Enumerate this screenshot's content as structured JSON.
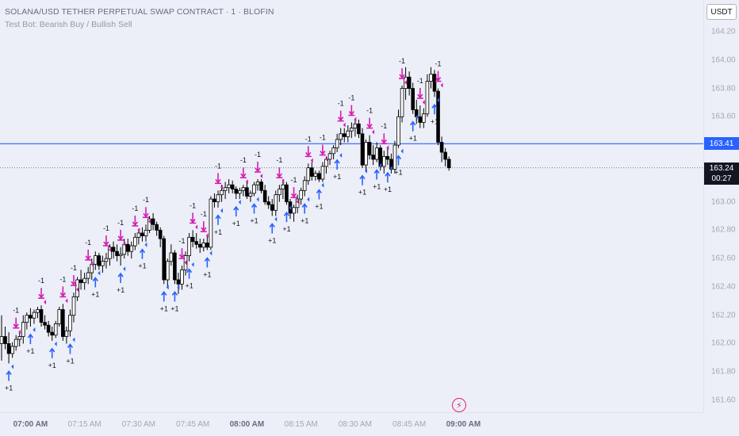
{
  "header": {
    "title": "SOLANA/USD TETHER PERPETUAL SWAP CONTRACT · 1 · BLOFIN",
    "subtitle": "Test Bot: Bearish Buy / Bullish Sell"
  },
  "currency_button": "USDT",
  "price_tags": {
    "line_price": "163.41",
    "last_price": "163.24",
    "countdown": "00:27"
  },
  "event_icon": "lightning-icon",
  "colors": {
    "background": "#eceff8",
    "candle_up_fill": "#ffffff",
    "candle_down_fill": "#000000",
    "sell_marker": "#d41cb1",
    "buy_marker": "#2962ff",
    "horizontal_line": "#2962ff",
    "event_icon": "#e0245e"
  },
  "chart_data": {
    "type": "candlestick",
    "title": "SOLANA/USD TETHER PERPETUAL SWAP CONTRACT · 1 · BLOFIN",
    "y_ticks": [
      "164.20",
      "164.00",
      "163.80",
      "163.60",
      "163.40",
      "163.20",
      "163.00",
      "162.80",
      "162.60",
      "162.40",
      "162.20",
      "162.00",
      "161.80",
      "161.60"
    ],
    "x_ticks": [
      {
        "label": "07:00 AM",
        "bold": true
      },
      {
        "label": "07:15 AM",
        "bold": false
      },
      {
        "label": "07:30 AM",
        "bold": false
      },
      {
        "label": "07:45 AM",
        "bold": false
      },
      {
        "label": "08:00 AM",
        "bold": true
      },
      {
        "label": "08:15 AM",
        "bold": false
      },
      {
        "label": "08:30 AM",
        "bold": false
      },
      {
        "label": "08:45 AM",
        "bold": false
      },
      {
        "label": "09:00 AM",
        "bold": true
      }
    ],
    "x_start_minutes": 412,
    "bar_minutes": 1,
    "ylim": [
      161.52,
      164.3
    ],
    "grid": false,
    "horizontal_line": 163.41,
    "last_price": 163.24,
    "sell_marker_label": "-1",
    "buy_marker_label": "+1",
    "candles": [
      [
        162.0,
        162.2,
        161.88,
        162.05
      ],
      [
        162.05,
        162.12,
        161.96,
        162.0
      ],
      [
        162.0,
        162.08,
        161.86,
        161.93
      ],
      [
        161.93,
        162.01,
        161.9,
        161.98
      ],
      [
        161.98,
        162.06,
        161.95,
        162.03
      ],
      [
        162.03,
        162.08,
        161.98,
        162.05
      ],
      [
        162.05,
        162.2,
        162.0,
        162.15
      ],
      [
        162.15,
        162.22,
        162.1,
        162.2
      ],
      [
        162.2,
        162.25,
        162.12,
        162.18
      ],
      [
        162.18,
        162.24,
        162.14,
        162.22
      ],
      [
        162.22,
        162.26,
        162.18,
        162.24
      ],
      [
        162.24,
        162.27,
        162.12,
        162.15
      ],
      [
        162.15,
        162.2,
        162.1,
        162.13
      ],
      [
        162.13,
        162.16,
        162.05,
        162.08
      ],
      [
        162.08,
        162.12,
        162.02,
        162.06
      ],
      [
        162.06,
        162.16,
        162.04,
        162.14
      ],
      [
        162.14,
        162.26,
        162.12,
        162.24
      ],
      [
        162.24,
        162.28,
        162.02,
        162.05
      ],
      [
        162.05,
        162.12,
        162.0,
        162.09
      ],
      [
        162.09,
        162.24,
        162.05,
        162.2
      ],
      [
        162.2,
        162.36,
        162.15,
        162.33
      ],
      [
        162.33,
        162.47,
        162.3,
        162.45
      ],
      [
        162.45,
        162.52,
        162.38,
        162.43
      ],
      [
        162.43,
        162.5,
        162.38,
        162.46
      ],
      [
        162.46,
        162.54,
        162.42,
        162.5
      ],
      [
        162.5,
        162.6,
        162.45,
        162.56
      ],
      [
        162.56,
        162.65,
        162.52,
        162.62
      ],
      [
        162.62,
        162.64,
        162.52,
        162.55
      ],
      [
        162.55,
        162.62,
        162.5,
        162.58
      ],
      [
        162.58,
        162.64,
        162.53,
        162.6
      ],
      [
        162.6,
        162.7,
        162.55,
        162.68
      ],
      [
        162.68,
        162.72,
        162.6,
        162.65
      ],
      [
        162.65,
        162.7,
        162.58,
        162.62
      ],
      [
        162.62,
        162.68,
        162.55,
        162.63
      ],
      [
        162.63,
        162.74,
        162.6,
        162.7
      ],
      [
        162.7,
        162.74,
        162.62,
        162.65
      ],
      [
        162.65,
        162.72,
        162.6,
        162.69
      ],
      [
        162.69,
        162.78,
        162.66,
        162.75
      ],
      [
        162.75,
        162.8,
        162.7,
        162.78
      ],
      [
        162.78,
        162.82,
        162.72,
        162.76
      ],
      [
        162.76,
        162.84,
        162.72,
        162.8
      ],
      [
        162.8,
        162.9,
        162.78,
        162.88
      ],
      [
        162.88,
        162.92,
        162.8,
        162.84
      ],
      [
        162.84,
        162.86,
        162.76,
        162.8
      ],
      [
        162.8,
        162.82,
        162.68,
        162.74
      ],
      [
        162.74,
        162.76,
        162.42,
        162.45
      ],
      [
        162.45,
        162.6,
        162.4,
        162.58
      ],
      [
        162.58,
        162.7,
        162.55,
        162.64
      ],
      [
        162.64,
        162.66,
        162.42,
        162.45
      ],
      [
        162.45,
        162.5,
        162.35,
        162.42
      ],
      [
        162.42,
        162.55,
        162.38,
        162.52
      ],
      [
        162.52,
        162.65,
        162.48,
        162.62
      ],
      [
        162.62,
        162.78,
        162.58,
        162.75
      ],
      [
        162.75,
        162.8,
        162.68,
        162.72
      ],
      [
        162.72,
        162.78,
        162.67,
        162.7
      ],
      [
        162.7,
        162.74,
        162.64,
        162.68
      ],
      [
        162.68,
        162.74,
        162.65,
        162.71
      ],
      [
        162.71,
        162.76,
        162.66,
        162.68
      ],
      [
        162.68,
        163.04,
        162.66,
        163.02
      ],
      [
        163.02,
        163.06,
        162.96,
        163.0
      ],
      [
        163.0,
        163.08,
        162.96,
        163.05
      ],
      [
        163.05,
        163.12,
        163.0,
        163.08
      ],
      [
        163.08,
        163.14,
        163.02,
        163.1
      ],
      [
        163.1,
        163.16,
        163.06,
        163.12
      ],
      [
        163.12,
        163.15,
        163.06,
        163.09
      ],
      [
        163.09,
        163.11,
        163.02,
        163.06
      ],
      [
        163.06,
        163.1,
        163.02,
        163.08
      ],
      [
        163.08,
        163.12,
        163.04,
        163.1
      ],
      [
        163.1,
        163.14,
        163.02,
        163.04
      ],
      [
        163.04,
        163.08,
        163.0,
        163.06
      ],
      [
        163.06,
        163.14,
        163.04,
        163.12
      ],
      [
        163.12,
        163.16,
        163.08,
        163.14
      ],
      [
        163.14,
        163.16,
        163.06,
        163.08
      ],
      [
        163.08,
        163.12,
        162.98,
        163.0
      ],
      [
        163.0,
        163.04,
        162.95,
        162.98
      ],
      [
        162.98,
        163.02,
        162.9,
        162.94
      ],
      [
        162.94,
        163.08,
        162.9,
        163.05
      ],
      [
        163.05,
        163.12,
        163.0,
        163.09
      ],
      [
        163.09,
        163.16,
        163.02,
        163.12
      ],
      [
        163.12,
        163.14,
        162.98,
        163.0
      ],
      [
        163.0,
        163.02,
        162.88,
        162.92
      ],
      [
        162.92,
        162.98,
        162.86,
        162.96
      ],
      [
        162.96,
        163.05,
        162.92,
        163.02
      ],
      [
        163.02,
        163.1,
        162.98,
        163.08
      ],
      [
        163.08,
        163.18,
        163.04,
        163.15
      ],
      [
        163.15,
        163.27,
        163.12,
        163.24
      ],
      [
        163.24,
        163.28,
        163.15,
        163.18
      ],
      [
        163.18,
        163.22,
        163.15,
        163.2
      ],
      [
        163.2,
        163.22,
        163.14,
        163.16
      ],
      [
        163.16,
        163.28,
        163.14,
        163.25
      ],
      [
        163.25,
        163.32,
        163.2,
        163.3
      ],
      [
        163.3,
        163.36,
        163.26,
        163.34
      ],
      [
        163.34,
        163.4,
        163.3,
        163.38
      ],
      [
        163.38,
        163.48,
        163.35,
        163.44
      ],
      [
        163.44,
        163.52,
        163.4,
        163.48
      ],
      [
        163.48,
        163.52,
        163.42,
        163.46
      ],
      [
        163.46,
        163.54,
        163.42,
        163.5
      ],
      [
        163.5,
        163.56,
        163.45,
        163.52
      ],
      [
        163.52,
        163.58,
        163.46,
        163.55
      ],
      [
        163.55,
        163.58,
        163.45,
        163.48
      ],
      [
        163.48,
        163.52,
        163.24,
        163.26
      ],
      [
        163.26,
        163.44,
        163.22,
        163.42
      ],
      [
        163.42,
        163.47,
        163.3,
        163.33
      ],
      [
        163.33,
        163.4,
        163.26,
        163.3
      ],
      [
        163.3,
        163.42,
        163.28,
        163.38
      ],
      [
        163.38,
        163.4,
        163.22,
        163.25
      ],
      [
        163.25,
        163.36,
        163.2,
        163.32
      ],
      [
        163.32,
        163.38,
        163.26,
        163.3
      ],
      [
        163.3,
        163.34,
        163.2,
        163.23
      ],
      [
        163.23,
        163.43,
        163.2,
        163.4
      ],
      [
        163.4,
        163.65,
        163.38,
        163.6
      ],
      [
        163.6,
        163.82,
        163.56,
        163.8
      ],
      [
        163.8,
        163.95,
        163.72,
        163.88
      ],
      [
        163.88,
        163.92,
        163.75,
        163.8
      ],
      [
        163.8,
        163.84,
        163.62,
        163.65
      ],
      [
        163.65,
        163.72,
        163.55,
        163.6
      ],
      [
        163.6,
        163.68,
        163.52,
        163.56
      ],
      [
        163.56,
        163.66,
        163.52,
        163.62
      ],
      [
        163.62,
        163.9,
        163.6,
        163.85
      ],
      [
        163.85,
        163.95,
        163.8,
        163.9
      ],
      [
        163.9,
        163.93,
        163.74,
        163.78
      ],
      [
        163.78,
        163.8,
        163.4,
        163.42
      ],
      [
        163.42,
        163.46,
        163.28,
        163.35
      ],
      [
        163.35,
        163.38,
        163.25,
        163.3
      ],
      [
        163.3,
        163.32,
        163.22,
        163.24
      ]
    ],
    "sell_markers": [
      4,
      11,
      17,
      20,
      24,
      29,
      33,
      37,
      40,
      50,
      53,
      56,
      60,
      67,
      71,
      77,
      81,
      85,
      89,
      94,
      97,
      102,
      106,
      111,
      116,
      121
    ],
    "buy_markers": [
      2,
      8,
      14,
      19,
      26,
      33,
      39,
      45,
      48,
      52,
      57,
      60,
      65,
      70,
      75,
      79,
      84,
      88,
      93,
      100,
      104,
      107,
      110,
      114,
      120
    ]
  }
}
